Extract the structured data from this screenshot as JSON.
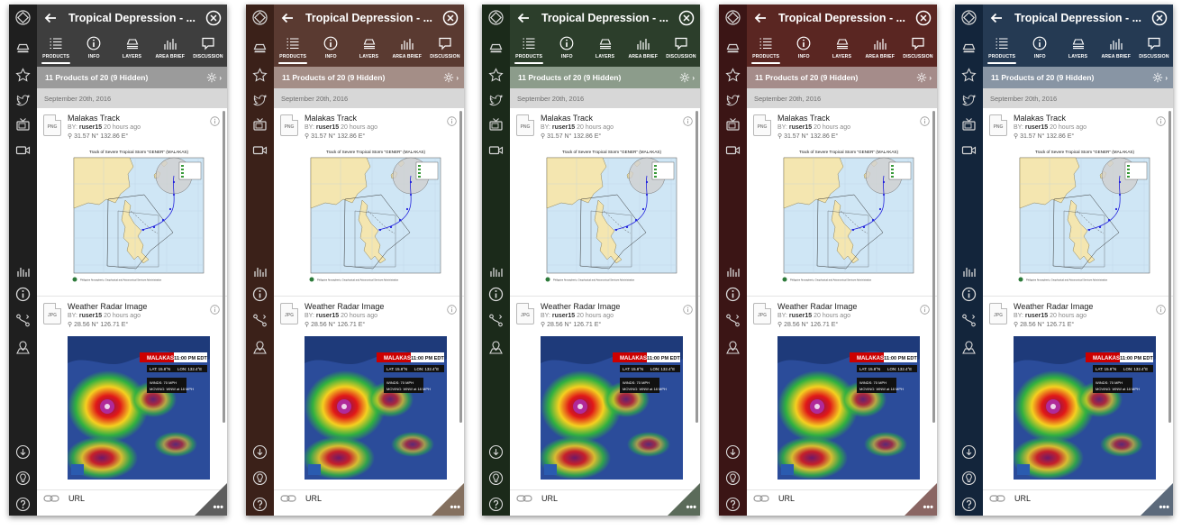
{
  "panels": [
    {
      "theme_name": "graphite",
      "rail_color": "#1f1f1f",
      "header_color": "#3e3e3e",
      "countbar_color": "#9b9b9b",
      "corner_color": "#5e5e5e"
    },
    {
      "theme_name": "brown",
      "rail_color": "#3b2119",
      "header_color": "#5a3a31",
      "countbar_color": "#a48e87",
      "corner_color": "#84705f"
    },
    {
      "theme_name": "green",
      "rail_color": "#1b2a1a",
      "header_color": "#2c3e2b",
      "countbar_color": "#8c9c8b",
      "corner_color": "#5b6b5a"
    },
    {
      "theme_name": "red",
      "rail_color": "#3b1515",
      "header_color": "#5a2622",
      "countbar_color": "#a58c8a",
      "corner_color": "#8a6663"
    },
    {
      "theme_name": "navy",
      "rail_color": "#13253b",
      "header_color": "#253a53",
      "countbar_color": "#8895a4",
      "corner_color": "#5c6a7b"
    }
  ],
  "window": {
    "title": "Tropical Depression - ..."
  },
  "tabs": [
    {
      "label": "PRODUCTS",
      "icon": "list-icon"
    },
    {
      "label": "INFO",
      "icon": "info-icon"
    },
    {
      "label": "LAYERS",
      "icon": "layers-icon"
    },
    {
      "label": "AREA BRIEF",
      "icon": "bar-chart-icon"
    },
    {
      "label": "DISCUSSION",
      "icon": "speech-bubble-icon"
    }
  ],
  "products": {
    "count_text": "11 Products of 20 (9 Hidden)",
    "date_header": "September 20th, 2016",
    "items": [
      {
        "file_type": "PNG",
        "title": "Malakas Track",
        "by_label": "BY:",
        "user": "ruser15",
        "time": "20 hours ago",
        "location": "31.57 N° 132.86 E°",
        "image": {
          "heading": "Track of Severe Tropical Storm \"GENER\" (MALAKAS)",
          "footer": "Philippine Atmospheric, Geophysical and Astronomical Services Administration"
        }
      },
      {
        "file_type": "JPG",
        "title": "Weather Radar Image",
        "by_label": "BY:",
        "user": "ruser15",
        "time": "20 hours ago",
        "location": "28.56 N° 126.71 E°",
        "image": {
          "storm": "MALAKAS",
          "time": "11:00 PM EDT",
          "lat": "LAT: 15.8°N",
          "lon": "LON: 132.4°E",
          "winds": "WINDS: 70 MPH",
          "moving": "MOVING: WNW at 18 MPH"
        }
      }
    ],
    "url_item": {
      "title": "URL"
    },
    "more_label": "•••"
  },
  "rail_icons": [
    "layers-stack-icon",
    "star-icon",
    "twitter-icon",
    "tv-icon",
    "video-icon",
    "bar-chart-icon",
    "info-icon",
    "route-icon",
    "map-pin-icon",
    "cloud-download-icon",
    "lightbulb-icon",
    "help-icon"
  ]
}
